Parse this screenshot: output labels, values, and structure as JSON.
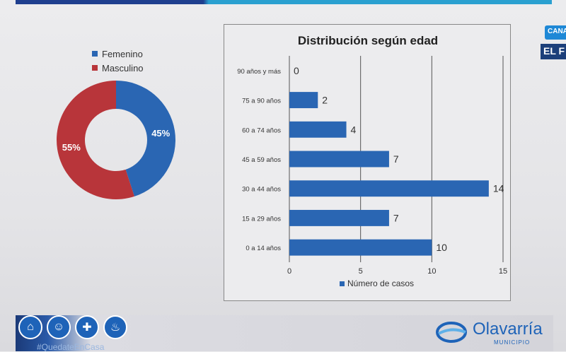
{
  "broadcast": {
    "channel_tag": "CANA",
    "program_tag": "EL F"
  },
  "gender_chart": {
    "type": "pie",
    "labels": [
      "Femenino",
      "Masculino"
    ],
    "values": [
      45,
      55
    ],
    "value_labels": [
      "45%",
      "55%"
    ],
    "colors": [
      "#2a66b3",
      "#b8353a"
    ],
    "legend_position": "top"
  },
  "chart_data": {
    "type": "bar",
    "orientation": "horizontal",
    "title": "Distribución según edad",
    "categories": [
      "90 años y más",
      "75 a 90 años",
      "60 a 74 años",
      "45 a 59 años",
      "30 a 44 años",
      "15 a 29 años",
      "0 a 14 años"
    ],
    "series": [
      {
        "name": "Número de casos",
        "values": [
          0,
          2,
          4,
          7,
          14,
          7,
          10
        ]
      }
    ],
    "xlim": [
      0,
      15
    ],
    "xticks": [
      "0",
      "5",
      "10",
      "15"
    ],
    "grid": true,
    "legend_position": "bottom",
    "color": "#2a66b3"
  },
  "footer": {
    "icons": [
      "home-icon",
      "mask-icon",
      "sanitizer-icon",
      "spray-icon"
    ],
    "hashtag": "#QuedateEnCasa",
    "logo_name": "Olavarría",
    "logo_sub": "MUNICIPIO"
  }
}
